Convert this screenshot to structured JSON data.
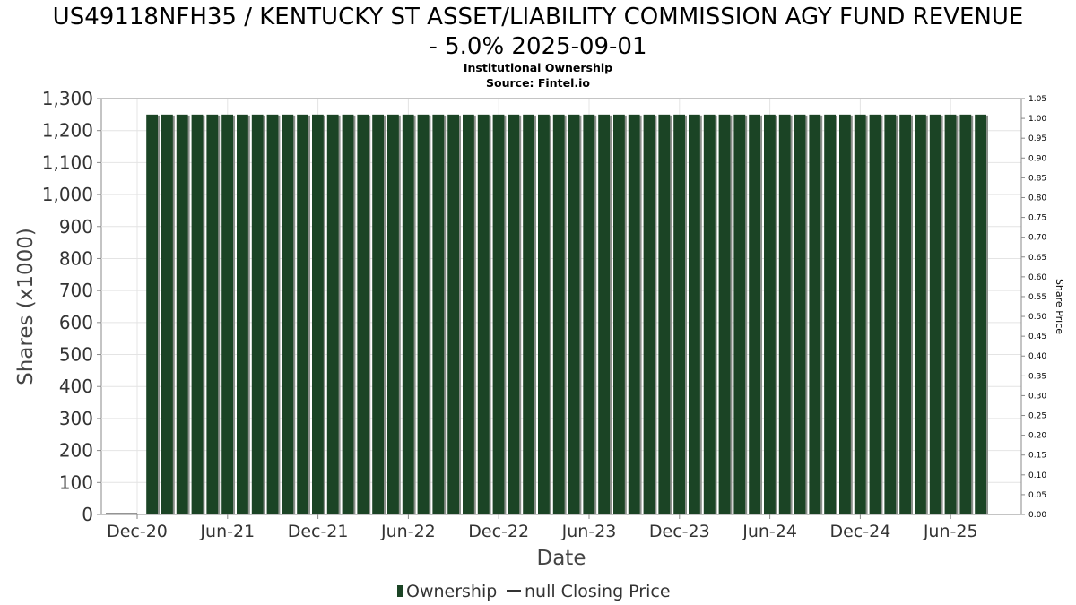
{
  "chart_data": {
    "type": "bar",
    "title_line1": "US49118NFH35 / KENTUCKY ST ASSET/LIABILITY COMMISSION AGY FUND REVENUE",
    "title_line2": "- 5.0% 2025-09-01",
    "subtitle": "Institutional Ownership",
    "source": "Source: Fintel.io",
    "xlabel": "Date",
    "ylabel": "Shares (x1000)",
    "y2label": "Share Price",
    "ylim": [
      0,
      1300
    ],
    "y2lim": [
      0,
      1.05
    ],
    "yticks": [
      "0",
      "100",
      "200",
      "300",
      "400",
      "500",
      "600",
      "700",
      "800",
      "900",
      "1,000",
      "1,100",
      "1,200",
      "1,300"
    ],
    "y2ticks": [
      "0.00",
      "0.05",
      "0.10",
      "0.15",
      "0.20",
      "0.25",
      "0.30",
      "0.35",
      "0.40",
      "0.45",
      "0.50",
      "0.55",
      "0.60",
      "0.65",
      "0.70",
      "0.75",
      "0.80",
      "0.85",
      "0.90",
      "0.95",
      "1.00",
      "1.05"
    ],
    "xticks": [
      "Dec-20",
      "Jun-21",
      "Dec-21",
      "Jun-22",
      "Dec-22",
      "Jun-23",
      "Dec-23",
      "Jun-24",
      "Dec-24",
      "Jun-25"
    ],
    "grid": true,
    "legend_position": "bottom",
    "series": [
      {
        "name": "Ownership",
        "type": "bar",
        "color": "#1b4425",
        "x": [
          "2021-01",
          "2021-02",
          "2021-03",
          "2021-04",
          "2021-05",
          "2021-06",
          "2021-07",
          "2021-08",
          "2021-09",
          "2021-10",
          "2021-11",
          "2021-12",
          "2022-01",
          "2022-02",
          "2022-03",
          "2022-04",
          "2022-05",
          "2022-06",
          "2022-07",
          "2022-08",
          "2022-09",
          "2022-10",
          "2022-11",
          "2022-12",
          "2023-01",
          "2023-02",
          "2023-03",
          "2023-04",
          "2023-05",
          "2023-06",
          "2023-07",
          "2023-08",
          "2023-09",
          "2023-10",
          "2023-11",
          "2023-12",
          "2024-01",
          "2024-02",
          "2024-03",
          "2024-04",
          "2024-05",
          "2024-06",
          "2024-07",
          "2024-08",
          "2024-09",
          "2024-10",
          "2024-11",
          "2024-12",
          "2025-01",
          "2025-02",
          "2025-03",
          "2025-04",
          "2025-05",
          "2025-06",
          "2025-07",
          "2025-08"
        ],
        "values": [
          1250,
          1250,
          1250,
          1250,
          1250,
          1250,
          1250,
          1250,
          1250,
          1250,
          1250,
          1250,
          1250,
          1250,
          1250,
          1250,
          1250,
          1250,
          1250,
          1250,
          1250,
          1250,
          1250,
          1250,
          1250,
          1250,
          1250,
          1250,
          1250,
          1250,
          1250,
          1250,
          1250,
          1250,
          1250,
          1250,
          1250,
          1250,
          1250,
          1250,
          1250,
          1250,
          1250,
          1250,
          1250,
          1250,
          1250,
          1250,
          1250,
          1250,
          1250,
          1250,
          1250,
          1250,
          1250,
          1250
        ]
      },
      {
        "name": "null Closing Price",
        "type": "line",
        "values": []
      }
    ]
  }
}
